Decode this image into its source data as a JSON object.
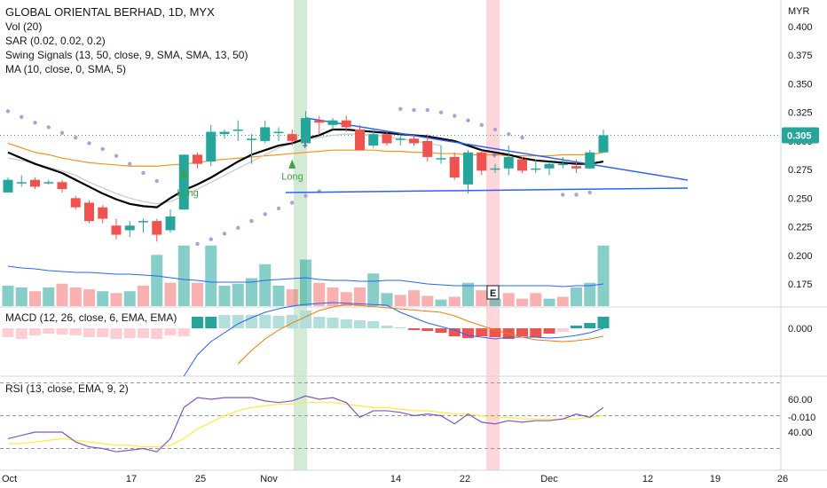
{
  "chart_data": {
    "type": "candlestick",
    "title": "GLOBAL ORIENTAL BERHAD, 1D, MYX",
    "currency": "MYR",
    "last_price": "0.305",
    "indicators": {
      "vol": "Vol (20)",
      "sar": "SAR (0.02, 0.02, 0.2)",
      "swing": "Swing Signals (13, 50, close, 9, SMA, SMA, 13, 50)",
      "ma": "MA (10, close, 0, SMA, 5)",
      "macd": "MACD (12, 26, close, 6, EMA, EMA)",
      "rsi": "RSI (13, close, EMA, 9, 2)"
    },
    "price_axis": {
      "ticks": [
        "0.400",
        "0.375",
        "0.350",
        "0.325",
        "0.300",
        "0.275",
        "0.250",
        "0.225",
        "0.200",
        "0.175"
      ],
      "ylim": [
        0.155,
        0.41
      ]
    },
    "macd_axis": {
      "ticks": [
        "0.000",
        "-0.010"
      ]
    },
    "rsi_axis": {
      "ticks": [
        "60.00",
        "40.00"
      ]
    },
    "x_ticks": [
      "Oct",
      "17",
      "25",
      "Nov",
      "14",
      "22",
      "Dec",
      "12",
      "19",
      "26"
    ],
    "annotations": {
      "long1": "Long",
      "long2": "Long",
      "earnings": "E"
    },
    "candles": [
      {
        "o": 0.255,
        "h": 0.268,
        "l": 0.255,
        "c": 0.266
      },
      {
        "o": 0.264,
        "h": 0.27,
        "l": 0.26,
        "c": 0.264
      },
      {
        "o": 0.266,
        "h": 0.268,
        "l": 0.258,
        "c": 0.26
      },
      {
        "o": 0.264,
        "h": 0.266,
        "l": 0.262,
        "c": 0.264
      },
      {
        "o": 0.264,
        "h": 0.266,
        "l": 0.255,
        "c": 0.258
      },
      {
        "o": 0.25,
        "h": 0.252,
        "l": 0.24,
        "c": 0.242
      },
      {
        "o": 0.246,
        "h": 0.248,
        "l": 0.228,
        "c": 0.23
      },
      {
        "o": 0.242,
        "h": 0.244,
        "l": 0.228,
        "c": 0.232
      },
      {
        "o": 0.226,
        "h": 0.232,
        "l": 0.214,
        "c": 0.218
      },
      {
        "o": 0.222,
        "h": 0.23,
        "l": 0.216,
        "c": 0.226
      },
      {
        "o": 0.23,
        "h": 0.232,
        "l": 0.22,
        "c": 0.23
      },
      {
        "o": 0.23,
        "h": 0.232,
        "l": 0.212,
        "c": 0.218
      },
      {
        "o": 0.222,
        "h": 0.24,
        "l": 0.22,
        "c": 0.234
      },
      {
        "o": 0.24,
        "h": 0.288,
        "l": 0.24,
        "c": 0.288
      },
      {
        "o": 0.288,
        "h": 0.29,
        "l": 0.276,
        "c": 0.28
      },
      {
        "o": 0.282,
        "h": 0.314,
        "l": 0.278,
        "c": 0.308
      },
      {
        "o": 0.306,
        "h": 0.31,
        "l": 0.302,
        "c": 0.308
      },
      {
        "o": 0.31,
        "h": 0.318,
        "l": 0.3,
        "c": 0.31
      },
      {
        "o": 0.302,
        "h": 0.306,
        "l": 0.28,
        "c": 0.302
      },
      {
        "o": 0.3,
        "h": 0.318,
        "l": 0.298,
        "c": 0.312
      },
      {
        "o": 0.308,
        "h": 0.312,
        "l": 0.3,
        "c": 0.308
      },
      {
        "o": 0.306,
        "h": 0.31,
        "l": 0.296,
        "c": 0.3
      },
      {
        "o": 0.298,
        "h": 0.326,
        "l": 0.296,
        "c": 0.32
      },
      {
        "o": 0.318,
        "h": 0.322,
        "l": 0.305,
        "c": 0.316
      },
      {
        "o": 0.314,
        "h": 0.32,
        "l": 0.31,
        "c": 0.318
      },
      {
        "o": 0.318,
        "h": 0.322,
        "l": 0.308,
        "c": 0.312
      },
      {
        "o": 0.31,
        "h": 0.314,
        "l": 0.292,
        "c": 0.292
      },
      {
        "o": 0.296,
        "h": 0.31,
        "l": 0.294,
        "c": 0.306
      },
      {
        "o": 0.306,
        "h": 0.308,
        "l": 0.296,
        "c": 0.298
      },
      {
        "o": 0.302,
        "h": 0.306,
        "l": 0.296,
        "c": 0.302
      },
      {
        "o": 0.302,
        "h": 0.304,
        "l": 0.296,
        "c": 0.298
      },
      {
        "o": 0.3,
        "h": 0.306,
        "l": 0.282,
        "c": 0.286
      },
      {
        "o": 0.285,
        "h": 0.296,
        "l": 0.28,
        "c": 0.285
      },
      {
        "o": 0.286,
        "h": 0.29,
        "l": 0.266,
        "c": 0.268
      },
      {
        "o": 0.262,
        "h": 0.292,
        "l": 0.254,
        "c": 0.29
      },
      {
        "o": 0.29,
        "h": 0.292,
        "l": 0.27,
        "c": 0.274
      },
      {
        "o": 0.276,
        "h": 0.28,
        "l": 0.272,
        "c": 0.276
      },
      {
        "o": 0.276,
        "h": 0.296,
        "l": 0.27,
        "c": 0.286
      },
      {
        "o": 0.284,
        "h": 0.286,
        "l": 0.272,
        "c": 0.274
      },
      {
        "o": 0.276,
        "h": 0.284,
        "l": 0.272,
        "c": 0.276
      },
      {
        "o": 0.276,
        "h": 0.282,
        "l": 0.27,
        "c": 0.28
      },
      {
        "o": 0.28,
        "h": 0.286,
        "l": 0.276,
        "c": 0.28
      },
      {
        "o": 0.278,
        "h": 0.284,
        "l": 0.272,
        "c": 0.276
      },
      {
        "o": 0.276,
        "h": 0.292,
        "l": 0.276,
        "c": 0.29
      },
      {
        "o": 0.29,
        "h": 0.31,
        "l": 0.29,
        "c": 0.305
      }
    ],
    "volume": [
      {
        "v": 0.22,
        "up": true
      },
      {
        "v": 0.2,
        "up": true
      },
      {
        "v": 0.16,
        "up": false
      },
      {
        "v": 0.2,
        "up": true
      },
      {
        "v": 0.24,
        "up": false
      },
      {
        "v": 0.2,
        "up": false
      },
      {
        "v": 0.18,
        "up": false
      },
      {
        "v": 0.16,
        "up": true
      },
      {
        "v": 0.14,
        "up": false
      },
      {
        "v": 0.16,
        "up": true
      },
      {
        "v": 0.22,
        "up": false
      },
      {
        "v": 0.55,
        "up": true
      },
      {
        "v": 0.25,
        "up": false
      },
      {
        "v": 0.65,
        "up": true
      },
      {
        "v": 0.25,
        "up": false
      },
      {
        "v": 0.65,
        "up": true
      },
      {
        "v": 0.22,
        "up": true
      },
      {
        "v": 0.24,
        "up": true
      },
      {
        "v": 0.3,
        "up": true
      },
      {
        "v": 0.45,
        "up": true
      },
      {
        "v": 0.22,
        "up": true
      },
      {
        "v": 0.18,
        "up": false
      },
      {
        "v": 0.5,
        "up": true
      },
      {
        "v": 0.25,
        "up": false
      },
      {
        "v": 0.2,
        "up": false
      },
      {
        "v": 0.15,
        "up": false
      },
      {
        "v": 0.2,
        "up": false
      },
      {
        "v": 0.35,
        "up": true
      },
      {
        "v": 0.14,
        "up": true
      },
      {
        "v": 0.12,
        "up": false
      },
      {
        "v": 0.17,
        "up": false
      },
      {
        "v": 0.11,
        "up": false
      },
      {
        "v": 0.07,
        "up": true
      },
      {
        "v": 0.1,
        "up": false
      },
      {
        "v": 0.25,
        "up": true
      },
      {
        "v": 0.17,
        "up": false
      },
      {
        "v": 0.08,
        "up": true
      },
      {
        "v": 0.14,
        "up": false
      },
      {
        "v": 0.08,
        "up": false
      },
      {
        "v": 0.14,
        "up": false
      },
      {
        "v": 0.08,
        "up": true
      },
      {
        "v": 0.1,
        "up": false
      },
      {
        "v": 0.2,
        "up": true
      },
      {
        "v": 0.25,
        "up": true
      },
      {
        "v": 0.65,
        "up": true
      }
    ],
    "macd_hist": [
      -0.001,
      -0.0012,
      -0.0008,
      -0.0006,
      -0.0007,
      -0.0008,
      -0.001,
      -0.001,
      -0.0012,
      -0.0011,
      -0.0011,
      -0.0012,
      -0.0008,
      -0.0009,
      0.0013,
      0.0013,
      0.0015,
      0.0015,
      0.0015,
      0.0015,
      0.0014,
      0.0015,
      0.002,
      0.0013,
      0.0012,
      0.001,
      0.0009,
      0.0008,
      0.0003,
      0.0001,
      -0.0002,
      -0.0003,
      -0.0005,
      -0.0009,
      -0.0011,
      -0.0009,
      -0.001,
      -0.0012,
      -0.0009,
      -0.001,
      -0.0006,
      -0.0004,
      0.0003,
      0.0006,
      0.0013
    ],
    "rsi": [
      36,
      38,
      40,
      40,
      40,
      34,
      31,
      30,
      28,
      29,
      30,
      28,
      36,
      55,
      61,
      60,
      61,
      61,
      61,
      59,
      58,
      59,
      62,
      60,
      61,
      58,
      49,
      53,
      53,
      52,
      50,
      51,
      50,
      45,
      51,
      46,
      45,
      47,
      46,
      47,
      47,
      48,
      51,
      49,
      55
    ],
    "rsi_ma": [
      33,
      33,
      34,
      35,
      36,
      35,
      34,
      33,
      32,
      32,
      31,
      31,
      32,
      36,
      42,
      46,
      50,
      53,
      55,
      56,
      57,
      57,
      58,
      58,
      58,
      57,
      56,
      55,
      55,
      54,
      53,
      53,
      52,
      51,
      51,
      50,
      49,
      49,
      48,
      48,
      48,
      48,
      48,
      49,
      50
    ]
  }
}
